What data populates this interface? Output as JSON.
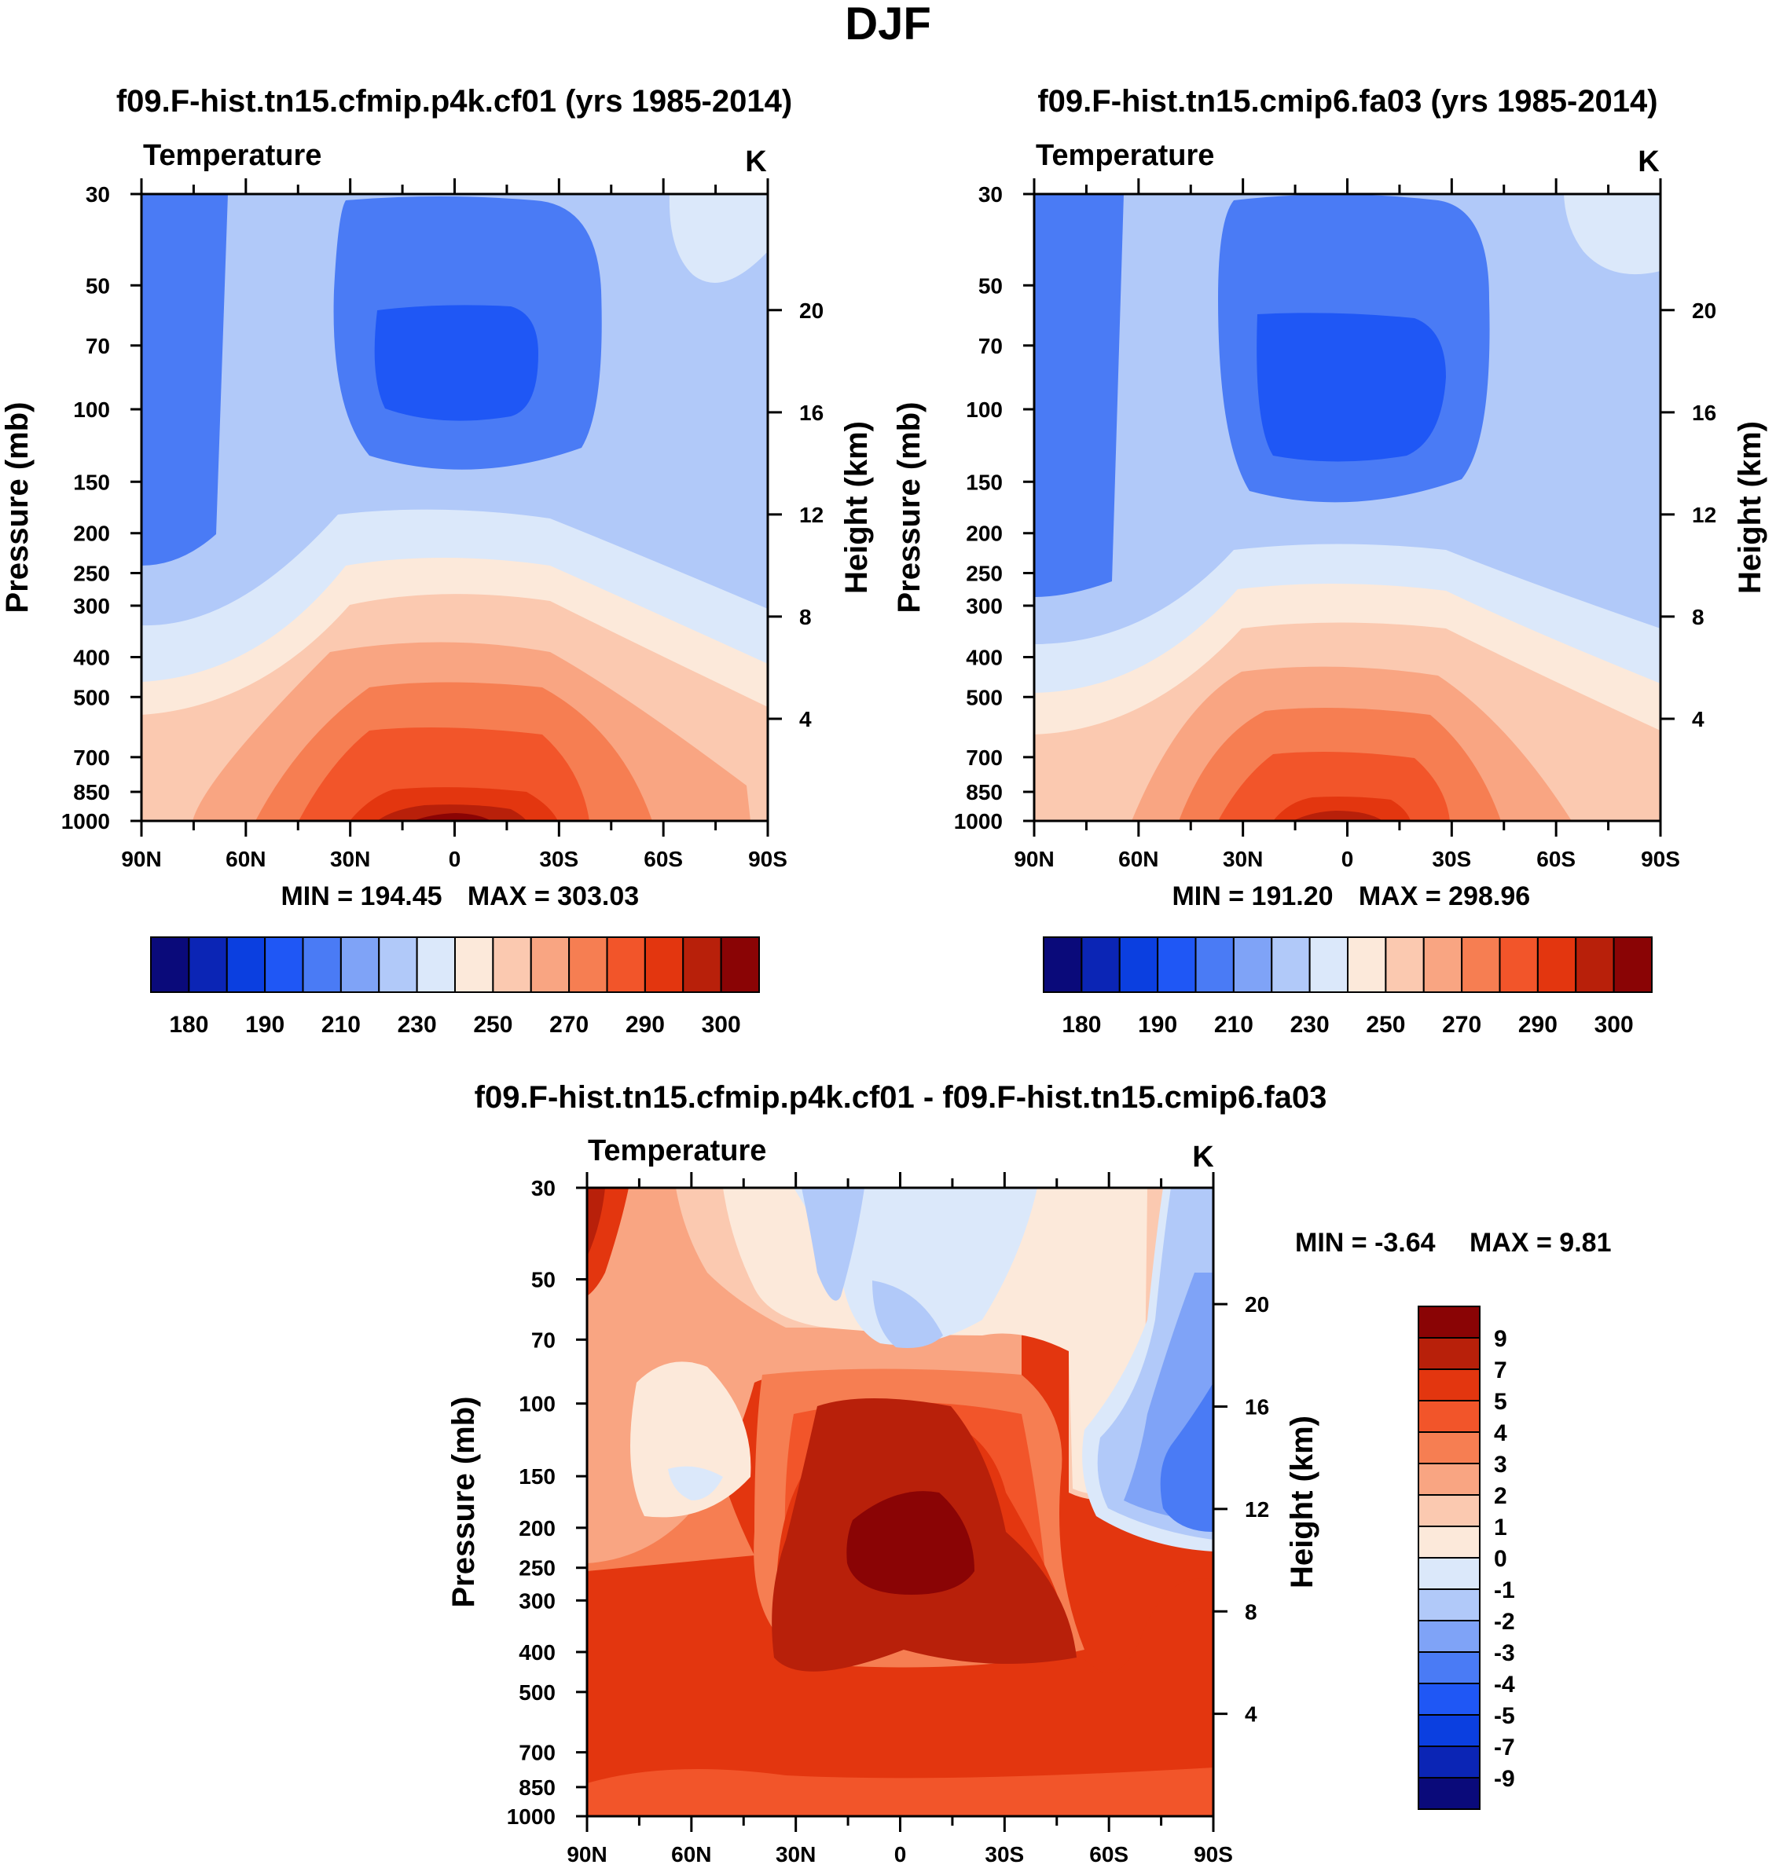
{
  "figure_title": "DJF",
  "colors": {
    "abs": [
      "#0a0a7a",
      "#0b25b5",
      "#0b3fe0",
      "#1f57f5",
      "#4a7bf5",
      "#7fa3f7",
      "#b1c9f9",
      "#dbe8fa",
      "#fce9da",
      "#fbc9b0",
      "#f9a582",
      "#f67e52",
      "#f2552a",
      "#e3360f",
      "#b8200a",
      "#8a0405"
    ],
    "diff": [
      "#0a0a7a",
      "#0b25b5",
      "#0b3fe0",
      "#1f57f5",
      "#4a7bf5",
      "#7fa3f7",
      "#b1c9f9",
      "#dbe8fa",
      "#fce9da",
      "#fbc9b0",
      "#f9a582",
      "#f67e52",
      "#f2552a",
      "#e3360f",
      "#b8200a",
      "#8a0405"
    ]
  },
  "chart_data": [
    {
      "type": "contour",
      "title": "f09.F-hist.tn15.cfmip.p4k.cf01 (yrs 1985-2014)",
      "variable": "Temperature",
      "units": "K",
      "xlabel": "",
      "ylabel": "Pressure (mb)",
      "ylabel_right": "Height (km)",
      "x_ticks": [
        "90N",
        "60N",
        "30N",
        "0",
        "30S",
        "60S",
        "90S"
      ],
      "x_range": [
        90,
        -90
      ],
      "y_ticks": [
        30,
        50,
        70,
        100,
        150,
        200,
        250,
        300,
        400,
        500,
        700,
        850,
        1000
      ],
      "y_range": [
        30,
        1000
      ],
      "height_ticks": [
        20,
        16,
        12,
        8,
        4
      ],
      "min_label": "MIN = 194.45",
      "max_label": "MAX = 303.03",
      "min": 194.45,
      "max": 303.03,
      "colorbar_labels": [
        "180",
        "190",
        "210",
        "230",
        "250",
        "270",
        "290",
        "300"
      ]
    },
    {
      "type": "contour",
      "title": "f09.F-hist.tn15.cmip6.fa03 (yrs 1985-2014)",
      "variable": "Temperature",
      "units": "K",
      "xlabel": "",
      "ylabel": "Pressure (mb)",
      "ylabel_right": "Height (km)",
      "x_ticks": [
        "90N",
        "60N",
        "30N",
        "0",
        "30S",
        "60S",
        "90S"
      ],
      "x_range": [
        90,
        -90
      ],
      "y_ticks": [
        30,
        50,
        70,
        100,
        150,
        200,
        250,
        300,
        400,
        500,
        700,
        850,
        1000
      ],
      "y_range": [
        30,
        1000
      ],
      "height_ticks": [
        20,
        16,
        12,
        8,
        4
      ],
      "min_label": "MIN = 191.20",
      "max_label": "MAX = 298.96",
      "min": 191.2,
      "max": 298.96,
      "colorbar_labels": [
        "180",
        "190",
        "210",
        "230",
        "250",
        "270",
        "290",
        "300"
      ]
    },
    {
      "type": "contour",
      "title": "f09.F-hist.tn15.cfmip.p4k.cf01 - f09.F-hist.tn15.cmip6.fa03",
      "variable": "Temperature",
      "units": "K",
      "xlabel": "",
      "ylabel": "Pressure (mb)",
      "ylabel_right": "Height (km)",
      "x_ticks": [
        "90N",
        "60N",
        "30N",
        "0",
        "30S",
        "60S",
        "90S"
      ],
      "x_range": [
        90,
        -90
      ],
      "y_ticks": [
        30,
        50,
        70,
        100,
        150,
        200,
        250,
        300,
        400,
        500,
        700,
        850,
        1000
      ],
      "y_range": [
        30,
        1000
      ],
      "height_ticks": [
        20,
        16,
        12,
        8,
        4
      ],
      "min_label": "MIN =  -3.64",
      "max_label": "MAX =   9.81",
      "min": -3.64,
      "max": 9.81,
      "colorbar_labels": [
        "9",
        "7",
        "5",
        "4",
        "3",
        "2",
        "1",
        "0",
        "-1",
        "-2",
        "-3",
        "-4",
        "-5",
        "-7",
        "-9"
      ]
    }
  ]
}
